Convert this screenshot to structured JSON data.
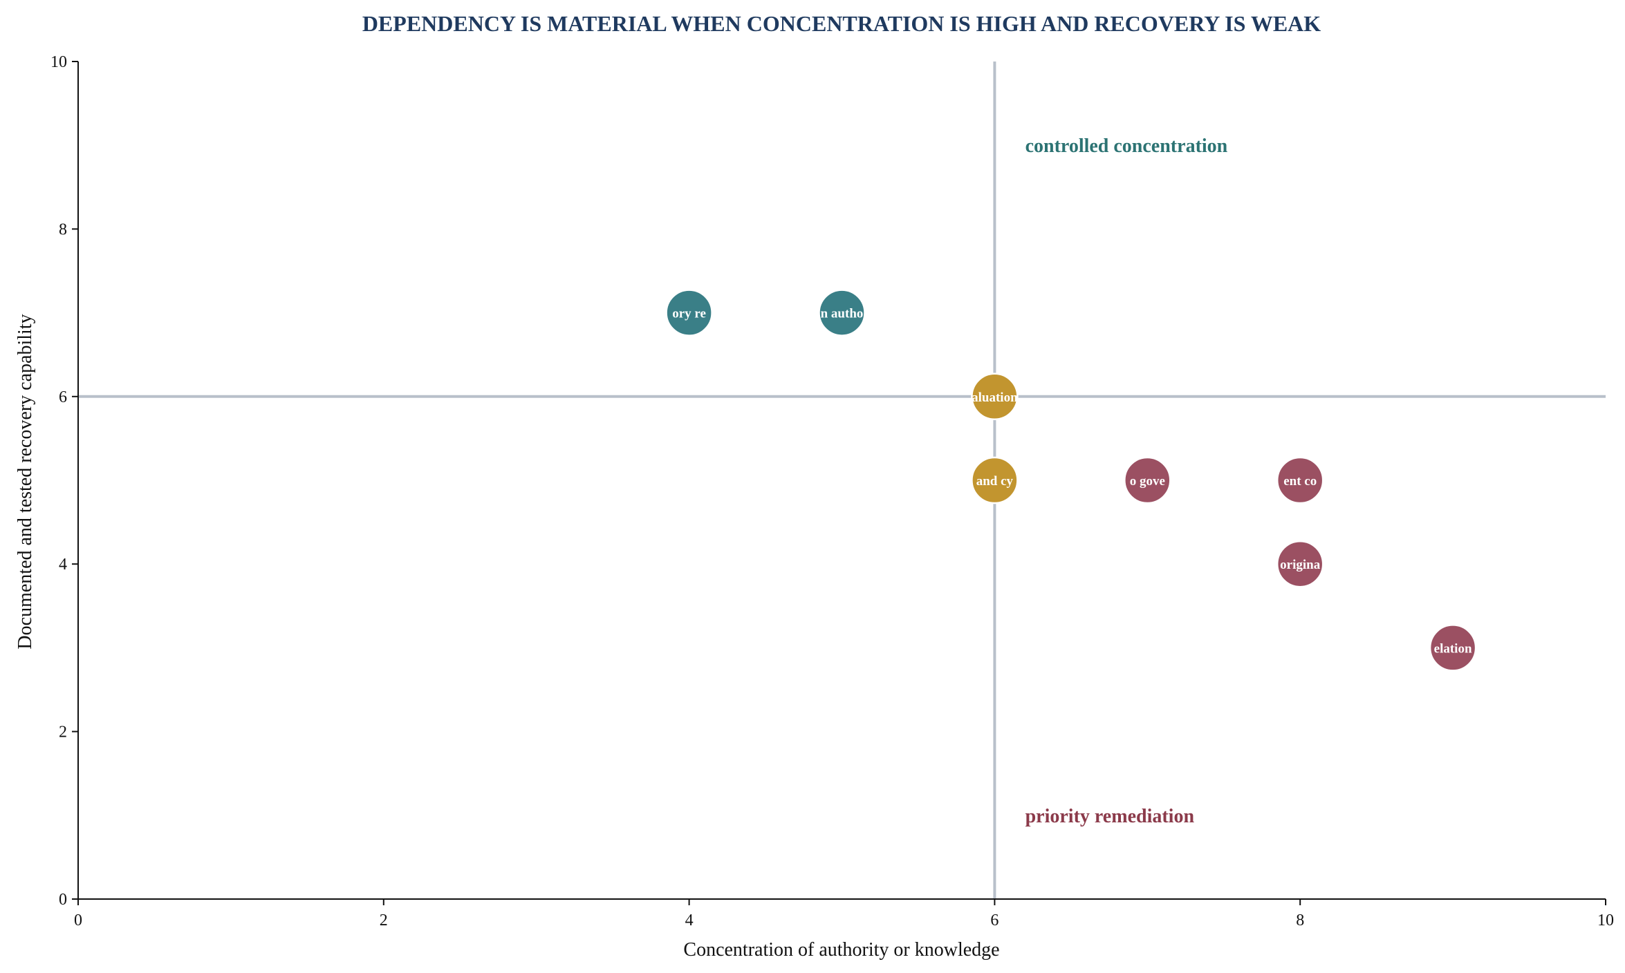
{
  "chart_data": {
    "type": "scatter",
    "title": "DEPENDENCY IS MATERIAL WHEN CONCENTRATION IS HIGH AND RECOVERY IS WEAK",
    "xlabel": "Concentration of authority or knowledge",
    "ylabel": "Documented and tested recovery capability",
    "xlim": [
      0,
      10
    ],
    "ylim": [
      0,
      10
    ],
    "xticks": [
      "0",
      "2",
      "4",
      "6",
      "8",
      "10"
    ],
    "yticks": [
      "0",
      "2",
      "4",
      "6",
      "8",
      "10"
    ],
    "grid": false,
    "reference_lines": {
      "x": 6,
      "y": 6,
      "color": "#b8c0ca"
    },
    "annotations": [
      {
        "text": "controlled concentration",
        "x": 6.2,
        "y": 9.0,
        "color": "#2c7373"
      },
      {
        "text": "priority remediation",
        "x": 6.2,
        "y": 1.0,
        "color": "#8b3a4a"
      }
    ],
    "points": [
      {
        "x": 4,
        "y": 7,
        "label": "ory re",
        "color": "#3a7f87"
      },
      {
        "x": 5,
        "y": 7,
        "label": "n autho",
        "color": "#3a7f87"
      },
      {
        "x": 6,
        "y": 6,
        "label": "aluation",
        "color": "#c2952f"
      },
      {
        "x": 6,
        "y": 5,
        "label": "and cy",
        "color": "#c2952f"
      },
      {
        "x": 7,
        "y": 5,
        "label": "o gove",
        "color": "#9b5062"
      },
      {
        "x": 8,
        "y": 5,
        "label": "ent co",
        "color": "#9b5062"
      },
      {
        "x": 8,
        "y": 4,
        "label": "origina",
        "color": "#9b5062"
      },
      {
        "x": 9,
        "y": 3,
        "label": "elation",
        "color": "#9b5062"
      }
    ]
  }
}
